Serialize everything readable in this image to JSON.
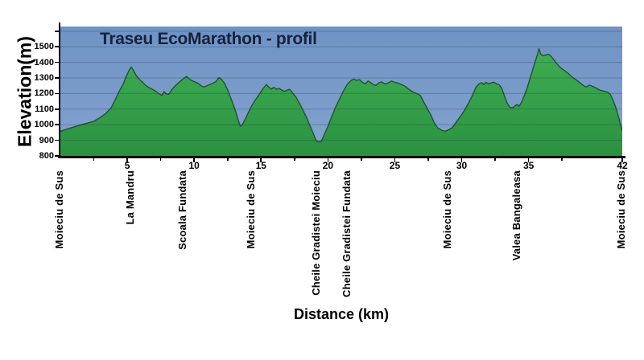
{
  "figure": {
    "title": "Traseu EcoMarathon - profil",
    "x_axis_title": "Distance (km)",
    "y_axis_title": "Elevation(m)"
  },
  "chart_data": {
    "type": "area",
    "title": "Traseu EcoMarathon - profil",
    "xlabel": "Distance (km)",
    "ylabel": "Elevation(m)",
    "xlim": [
      0,
      42
    ],
    "ylim": [
      800,
      1630
    ],
    "grid": "horizontal",
    "x_major_ticks": [
      5,
      10,
      15,
      20,
      25,
      30,
      35,
      42
    ],
    "x_minor_ticks": [
      2.5,
      7.5,
      12.5,
      17.5,
      22.5,
      27.5,
      32.5,
      37.5
    ],
    "y_ticks": [
      800,
      900,
      1000,
      1100,
      1200,
      1300,
      1400,
      1500
    ],
    "y_extra_tick": 1600,
    "grid_elevations": [
      900,
      1000,
      1100,
      1200,
      1300,
      1400,
      1500,
      1600
    ],
    "waypoints": [
      {
        "name": "Moieciu de Sus",
        "km": 0
      },
      {
        "name": "La Mandru",
        "km": 5.3
      },
      {
        "name": "Scoala Fundata",
        "km": 9.2
      },
      {
        "name": "Moieciu de Sus",
        "km": 14.3
      },
      {
        "name": "Cheile Gradistei Moieciu",
        "km": 19.2
      },
      {
        "name": "Cheile Gradistei Fundata",
        "km": 21.5
      },
      {
        "name": "Moieciu de Sus",
        "km": 29.0
      },
      {
        "name": "Valea Bangaleasa",
        "km": 34.2
      },
      {
        "name": "Moieciu de Sus",
        "km": 42
      }
    ],
    "profile": [
      [
        0,
        958
      ],
      [
        0.5,
        972
      ],
      [
        1,
        985
      ],
      [
        1.5,
        998
      ],
      [
        2,
        1010
      ],
      [
        2.5,
        1022
      ],
      [
        3,
        1048
      ],
      [
        3.4,
        1072
      ],
      [
        3.8,
        1110
      ],
      [
        4.1,
        1160
      ],
      [
        4.4,
        1215
      ],
      [
        4.7,
        1262
      ],
      [
        4.95,
        1315
      ],
      [
        5.15,
        1352
      ],
      [
        5.3,
        1370
      ],
      [
        5.45,
        1350
      ],
      [
        5.65,
        1318
      ],
      [
        5.9,
        1292
      ],
      [
        6.15,
        1272
      ],
      [
        6.4,
        1250
      ],
      [
        6.7,
        1235
      ],
      [
        7,
        1222
      ],
      [
        7.25,
        1207
      ],
      [
        7.45,
        1195
      ],
      [
        7.6,
        1188
      ],
      [
        7.75,
        1213
      ],
      [
        7.9,
        1198
      ],
      [
        8.1,
        1195
      ],
      [
        8.35,
        1228
      ],
      [
        8.6,
        1250
      ],
      [
        8.85,
        1270
      ],
      [
        9.1,
        1288
      ],
      [
        9.3,
        1302
      ],
      [
        9.45,
        1310
      ],
      [
        9.6,
        1296
      ],
      [
        9.8,
        1284
      ],
      [
        10.05,
        1275
      ],
      [
        10.3,
        1265
      ],
      [
        10.55,
        1248
      ],
      [
        10.75,
        1242
      ],
      [
        11,
        1252
      ],
      [
        11.3,
        1262
      ],
      [
        11.6,
        1275
      ],
      [
        11.85,
        1302
      ],
      [
        12.05,
        1290
      ],
      [
        12.25,
        1268
      ],
      [
        12.5,
        1225
      ],
      [
        12.75,
        1168
      ],
      [
        13,
        1112
      ],
      [
        13.25,
        1042
      ],
      [
        13.45,
        990
      ],
      [
        13.6,
        1002
      ],
      [
        13.8,
        1032
      ],
      [
        14.05,
        1078
      ],
      [
        14.3,
        1122
      ],
      [
        14.6,
        1162
      ],
      [
        14.9,
        1198
      ],
      [
        15.15,
        1232
      ],
      [
        15.4,
        1258
      ],
      [
        15.6,
        1240
      ],
      [
        15.75,
        1228
      ],
      [
        15.95,
        1240
      ],
      [
        16.15,
        1228
      ],
      [
        16.35,
        1233
      ],
      [
        16.55,
        1222
      ],
      [
        16.75,
        1214
      ],
      [
        16.95,
        1222
      ],
      [
        17.15,
        1227
      ],
      [
        17.35,
        1205
      ],
      [
        17.6,
        1178
      ],
      [
        17.85,
        1140
      ],
      [
        18.1,
        1098
      ],
      [
        18.4,
        1048
      ],
      [
        18.65,
        995
      ],
      [
        18.9,
        945
      ],
      [
        19.1,
        902
      ],
      [
        19.25,
        890
      ],
      [
        19.5,
        893
      ],
      [
        19.75,
        942
      ],
      [
        20,
        990
      ],
      [
        20.25,
        1045
      ],
      [
        20.55,
        1108
      ],
      [
        20.85,
        1162
      ],
      [
        21.15,
        1215
      ],
      [
        21.45,
        1260
      ],
      [
        21.7,
        1282
      ],
      [
        21.95,
        1293
      ],
      [
        22.15,
        1284
      ],
      [
        22.35,
        1290
      ],
      [
        22.6,
        1270
      ],
      [
        22.8,
        1262
      ],
      [
        23,
        1280
      ],
      [
        23.2,
        1270
      ],
      [
        23.4,
        1257
      ],
      [
        23.6,
        1252
      ],
      [
        23.8,
        1268
      ],
      [
        24,
        1275
      ],
      [
        24.25,
        1262
      ],
      [
        24.5,
        1268
      ],
      [
        24.75,
        1280
      ],
      [
        25,
        1272
      ],
      [
        25.25,
        1267
      ],
      [
        25.5,
        1258
      ],
      [
        25.75,
        1248
      ],
      [
        26.05,
        1228
      ],
      [
        26.35,
        1210
      ],
      [
        26.65,
        1200
      ],
      [
        26.9,
        1188
      ],
      [
        27.15,
        1148
      ],
      [
        27.4,
        1108
      ],
      [
        27.7,
        1062
      ],
      [
        27.95,
        1012
      ],
      [
        28.2,
        980
      ],
      [
        28.5,
        965
      ],
      [
        28.75,
        958
      ],
      [
        29,
        967
      ],
      [
        29.3,
        982
      ],
      [
        29.6,
        1018
      ],
      [
        29.9,
        1052
      ],
      [
        30.2,
        1092
      ],
      [
        30.5,
        1138
      ],
      [
        30.8,
        1188
      ],
      [
        31.05,
        1238
      ],
      [
        31.3,
        1262
      ],
      [
        31.5,
        1270
      ],
      [
        31.65,
        1258
      ],
      [
        31.8,
        1272
      ],
      [
        32,
        1262
      ],
      [
        32.2,
        1268
      ],
      [
        32.4,
        1272
      ],
      [
        32.6,
        1262
      ],
      [
        32.8,
        1256
      ],
      [
        33,
        1232
      ],
      [
        33.2,
        1182
      ],
      [
        33.4,
        1138
      ],
      [
        33.6,
        1112
      ],
      [
        33.8,
        1108
      ],
      [
        34,
        1122
      ],
      [
        34.15,
        1130
      ],
      [
        34.3,
        1118
      ],
      [
        34.5,
        1150
      ],
      [
        34.7,
        1192
      ],
      [
        34.9,
        1238
      ],
      [
        35.1,
        1295
      ],
      [
        35.3,
        1352
      ],
      [
        35.5,
        1408
      ],
      [
        35.65,
        1448
      ],
      [
        35.78,
        1487
      ],
      [
        35.9,
        1452
      ],
      [
        36.1,
        1443
      ],
      [
        36.3,
        1448
      ],
      [
        36.5,
        1452
      ],
      [
        36.7,
        1437
      ],
      [
        36.9,
        1415
      ],
      [
        37.1,
        1392
      ],
      [
        37.3,
        1372
      ],
      [
        37.55,
        1355
      ],
      [
        37.8,
        1340
      ],
      [
        38.05,
        1322
      ],
      [
        38.3,
        1302
      ],
      [
        38.55,
        1288
      ],
      [
        38.8,
        1272
      ],
      [
        39.05,
        1254
      ],
      [
        39.3,
        1242
      ],
      [
        39.55,
        1254
      ],
      [
        39.8,
        1246
      ],
      [
        40.05,
        1235
      ],
      [
        40.3,
        1222
      ],
      [
        40.6,
        1216
      ],
      [
        40.9,
        1210
      ],
      [
        41.1,
        1196
      ],
      [
        41.3,
        1160
      ],
      [
        41.5,
        1115
      ],
      [
        41.7,
        1058
      ],
      [
        41.88,
        998
      ],
      [
        42,
        960
      ]
    ],
    "colors": {
      "sky_top": "#6e93c4",
      "sky_bottom": "#84a3cf",
      "hill_top": "#3fae54",
      "hill_bottom": "#2a9140",
      "hill_outline": "#24512e",
      "gridline": "rgba(28,42,70,0.28)",
      "axis": "#000000",
      "title_text": "#16213c"
    }
  }
}
